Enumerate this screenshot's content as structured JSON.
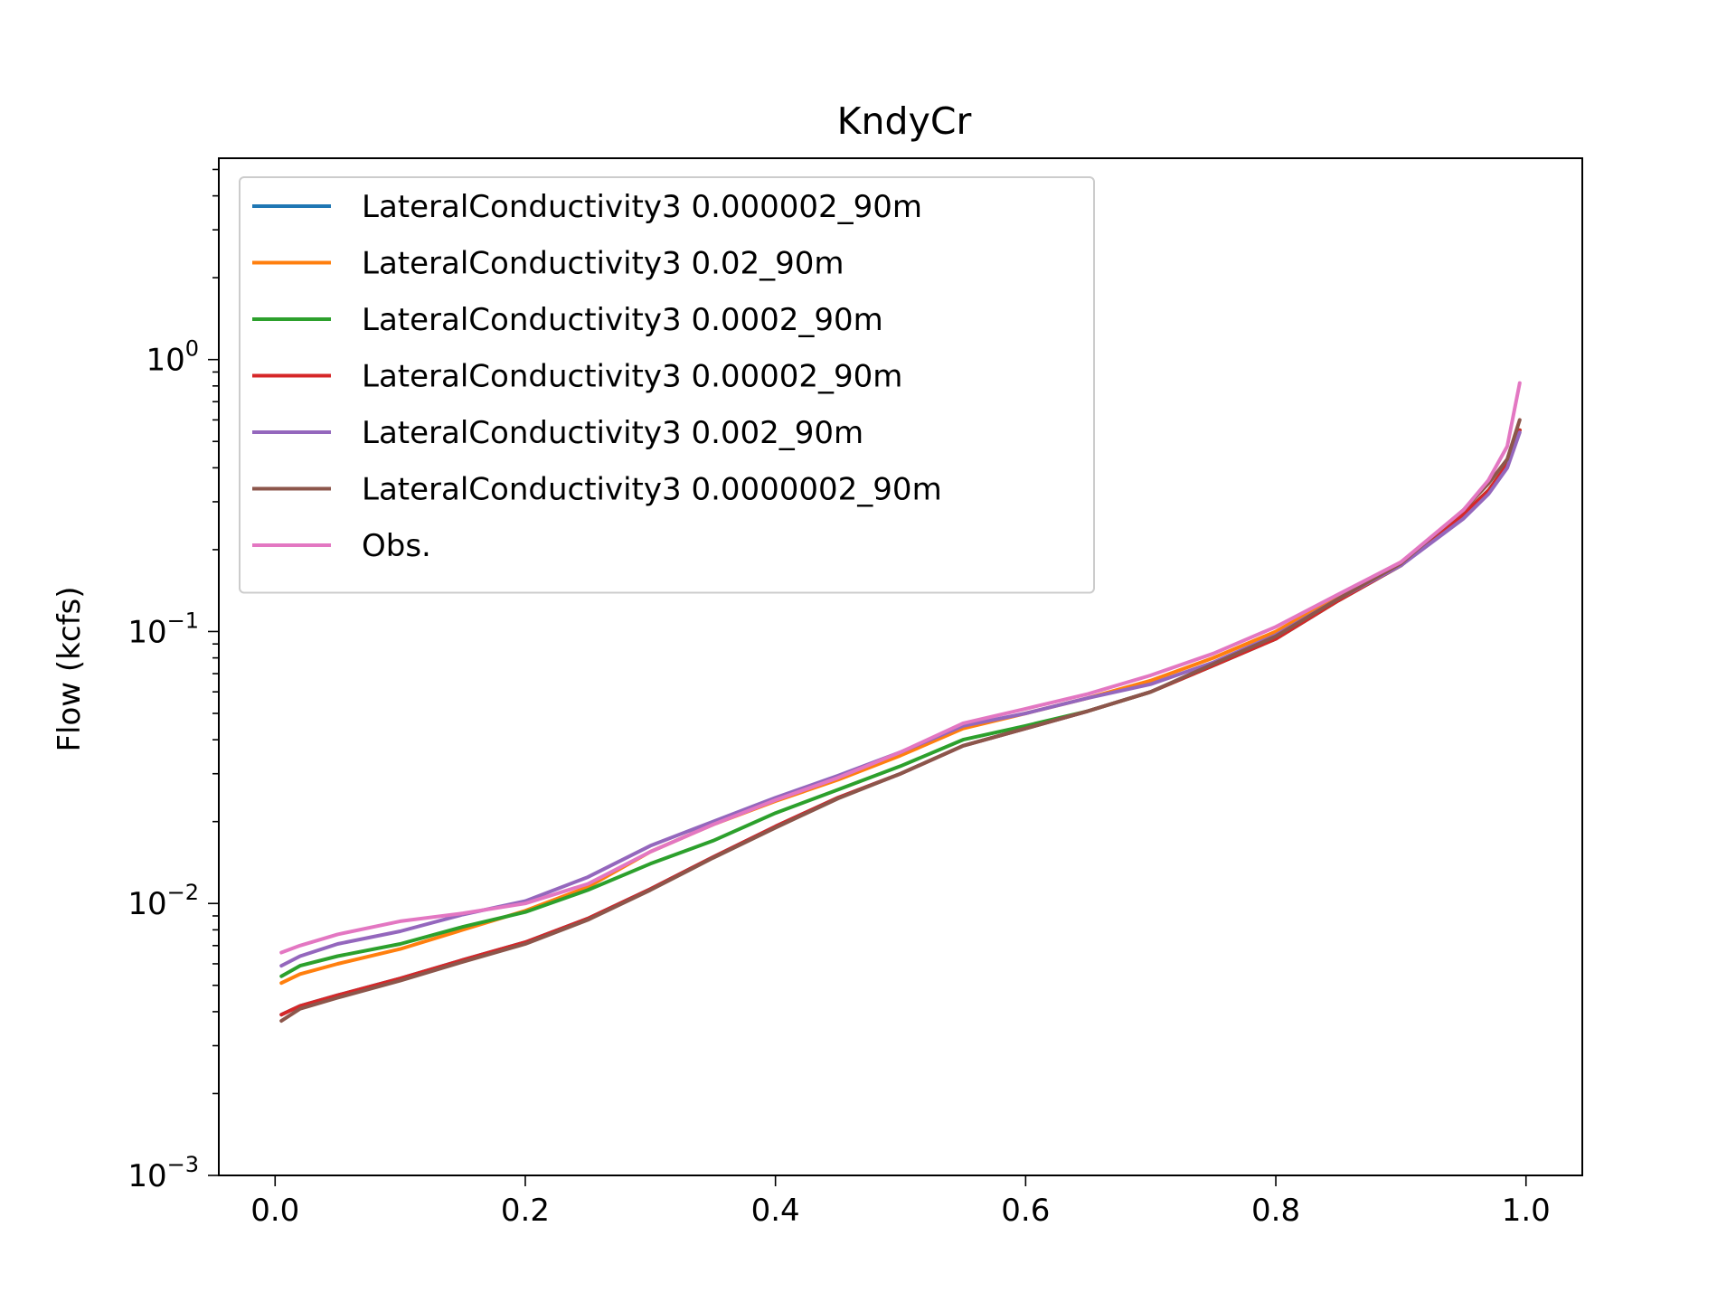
{
  "chart_data": {
    "type": "line",
    "title": "KndyCr",
    "xlabel": "",
    "ylabel": "Flow (kcfs)",
    "xlim": [
      -0.045,
      1.045
    ],
    "ylim": [
      0.001,
      5.5
    ],
    "yscale": "log",
    "grid": false,
    "legend_position": "upper-left",
    "x_ticks": [
      0.0,
      0.2,
      0.4,
      0.6,
      0.8,
      1.0
    ],
    "x_tick_labels": [
      "0.0",
      "0.2",
      "0.4",
      "0.6",
      "0.8",
      "1.0"
    ],
    "y_ticks": [
      0.001,
      0.01,
      0.1,
      1
    ],
    "y_tick_labels": [
      {
        "base": "10",
        "exp": "−3"
      },
      {
        "base": "10",
        "exp": "−2"
      },
      {
        "base": "10",
        "exp": "−1"
      },
      {
        "base": "10",
        "exp": "0"
      }
    ],
    "series": [
      {
        "name": "LateralConductivity3 0.000002_90m",
        "color": "#1f77b4",
        "x": [
          0.005,
          0.02,
          0.05,
          0.1,
          0.15,
          0.2,
          0.25,
          0.3,
          0.35,
          0.4,
          0.45,
          0.5,
          0.55,
          0.6,
          0.65,
          0.7,
          0.75,
          0.8,
          0.85,
          0.9,
          0.95,
          0.97,
          0.985,
          0.995
        ],
        "y": [
          0.0039,
          0.0042,
          0.0046,
          0.0053,
          0.0062,
          0.0072,
          0.0088,
          0.0113,
          0.0148,
          0.0192,
          0.0245,
          0.03,
          0.038,
          0.044,
          0.051,
          0.06,
          0.075,
          0.094,
          0.13,
          0.175,
          0.27,
          0.33,
          0.41,
          0.55
        ]
      },
      {
        "name": "LateralConductivity3 0.02_90m",
        "color": "#ff7f0e",
        "x": [
          0.005,
          0.02,
          0.05,
          0.1,
          0.15,
          0.2,
          0.25,
          0.3,
          0.35,
          0.4,
          0.45,
          0.5,
          0.55,
          0.6,
          0.65,
          0.7,
          0.75,
          0.8,
          0.85,
          0.9,
          0.95,
          0.97,
          0.985,
          0.995
        ],
        "y": [
          0.0051,
          0.0055,
          0.006,
          0.0068,
          0.008,
          0.0094,
          0.0115,
          0.0155,
          0.0195,
          0.0238,
          0.0285,
          0.035,
          0.044,
          0.05,
          0.057,
          0.066,
          0.08,
          0.1,
          0.135,
          0.18,
          0.27,
          0.33,
          0.41,
          0.55
        ]
      },
      {
        "name": "LateralConductivity3 0.0002_90m",
        "color": "#2ca02c",
        "x": [
          0.005,
          0.02,
          0.05,
          0.1,
          0.15,
          0.2,
          0.25,
          0.3,
          0.35,
          0.4,
          0.45,
          0.5,
          0.55,
          0.6,
          0.65,
          0.7,
          0.75,
          0.8,
          0.85,
          0.9,
          0.95,
          0.97,
          0.985,
          0.995
        ],
        "y": [
          0.0054,
          0.0059,
          0.0064,
          0.0071,
          0.0082,
          0.0093,
          0.0112,
          0.014,
          0.017,
          0.0215,
          0.0262,
          0.032,
          0.04,
          0.045,
          0.051,
          0.06,
          0.075,
          0.094,
          0.13,
          0.175,
          0.27,
          0.33,
          0.41,
          0.55
        ]
      },
      {
        "name": "LateralConductivity3 0.00002_90m",
        "color": "#d62728",
        "x": [
          0.005,
          0.02,
          0.05,
          0.1,
          0.15,
          0.2,
          0.25,
          0.3,
          0.35,
          0.4,
          0.45,
          0.5,
          0.55,
          0.6,
          0.65,
          0.7,
          0.75,
          0.8,
          0.85,
          0.9,
          0.95,
          0.97,
          0.985,
          0.995
        ],
        "y": [
          0.0039,
          0.0042,
          0.0046,
          0.0053,
          0.0062,
          0.0072,
          0.0088,
          0.0113,
          0.0148,
          0.0192,
          0.0245,
          0.03,
          0.038,
          0.044,
          0.051,
          0.06,
          0.075,
          0.094,
          0.13,
          0.175,
          0.27,
          0.33,
          0.41,
          0.55
        ]
      },
      {
        "name": "LateralConductivity3 0.002_90m",
        "color": "#9467bd",
        "x": [
          0.005,
          0.02,
          0.05,
          0.1,
          0.15,
          0.2,
          0.25,
          0.3,
          0.35,
          0.4,
          0.45,
          0.5,
          0.55,
          0.6,
          0.65,
          0.7,
          0.75,
          0.8,
          0.85,
          0.9,
          0.95,
          0.97,
          0.985,
          0.995
        ],
        "y": [
          0.0059,
          0.0064,
          0.0071,
          0.0079,
          0.0091,
          0.0102,
          0.0125,
          0.0163,
          0.02,
          0.0245,
          0.0295,
          0.036,
          0.045,
          0.05,
          0.057,
          0.064,
          0.077,
          0.097,
          0.132,
          0.175,
          0.26,
          0.32,
          0.4,
          0.54
        ]
      },
      {
        "name": "LateralConductivity3 0.0000002_90m",
        "color": "#8c564b",
        "x": [
          0.005,
          0.02,
          0.05,
          0.1,
          0.15,
          0.2,
          0.25,
          0.3,
          0.35,
          0.4,
          0.45,
          0.5,
          0.55,
          0.6,
          0.65,
          0.7,
          0.75,
          0.8,
          0.85,
          0.9,
          0.95,
          0.97,
          0.985,
          0.995
        ],
        "y": [
          0.0037,
          0.0041,
          0.0045,
          0.0052,
          0.0061,
          0.0071,
          0.0087,
          0.0112,
          0.0147,
          0.019,
          0.0243,
          0.03,
          0.038,
          0.044,
          0.051,
          0.06,
          0.076,
          0.096,
          0.132,
          0.178,
          0.28,
          0.35,
          0.43,
          0.6
        ]
      },
      {
        "name": "Obs.",
        "color": "#e377c2",
        "x": [
          0.005,
          0.02,
          0.05,
          0.1,
          0.15,
          0.2,
          0.25,
          0.3,
          0.35,
          0.4,
          0.45,
          0.5,
          0.55,
          0.6,
          0.65,
          0.7,
          0.75,
          0.8,
          0.85,
          0.9,
          0.95,
          0.97,
          0.985,
          0.995
        ],
        "y": [
          0.0066,
          0.007,
          0.0077,
          0.0086,
          0.0092,
          0.01,
          0.0118,
          0.0155,
          0.0195,
          0.024,
          0.029,
          0.036,
          0.046,
          0.052,
          0.059,
          0.069,
          0.083,
          0.104,
          0.137,
          0.18,
          0.28,
          0.36,
          0.48,
          0.82
        ]
      }
    ]
  }
}
